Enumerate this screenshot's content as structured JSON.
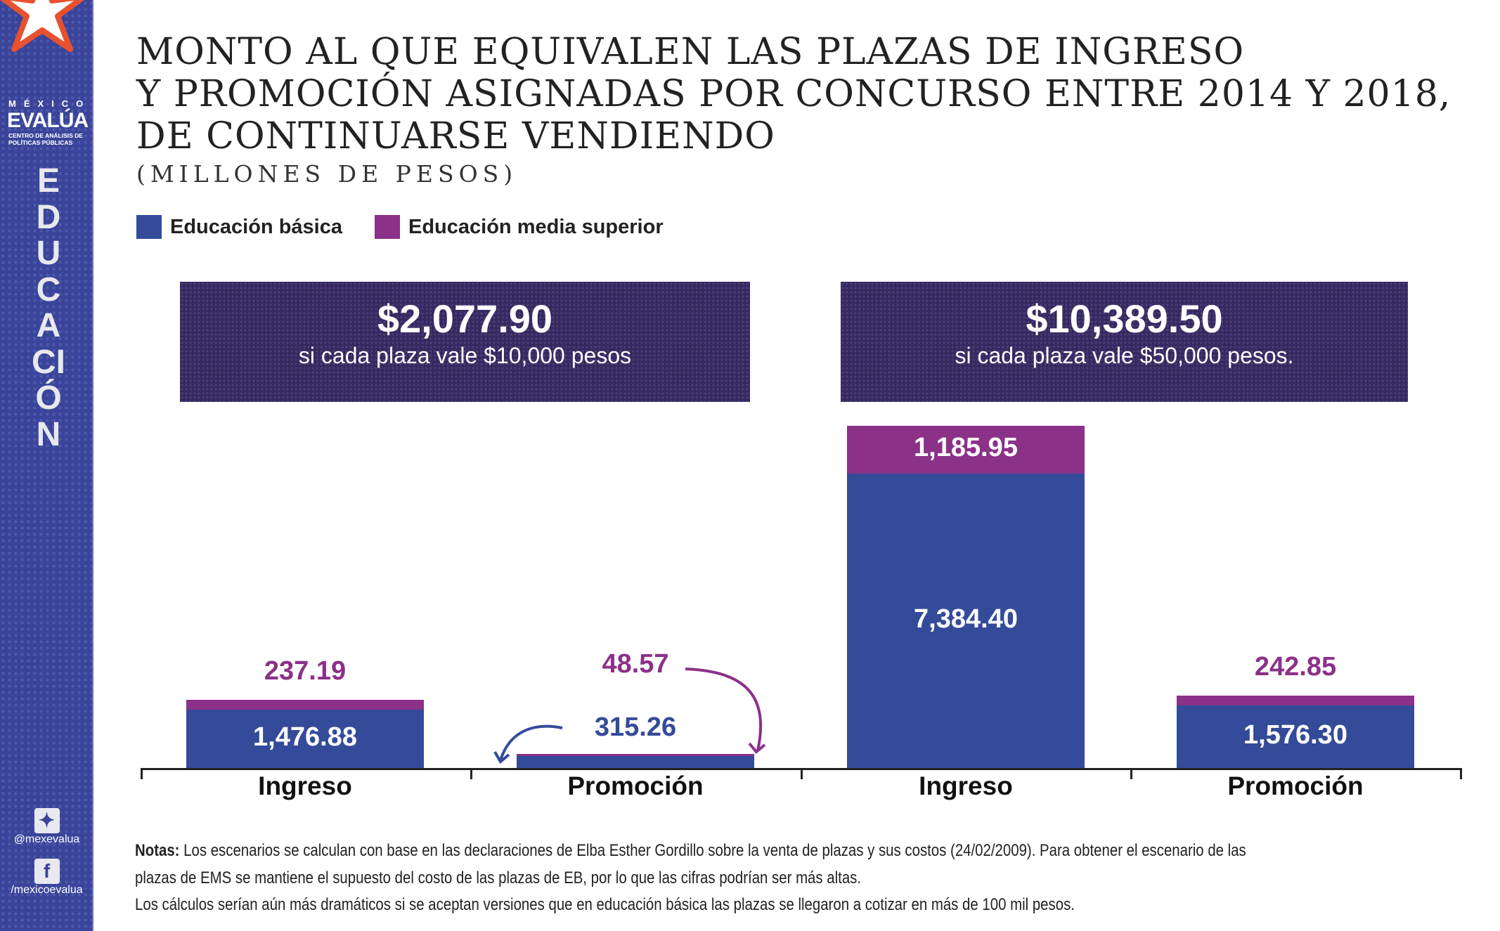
{
  "brand": {
    "line1": "MÉXICO",
    "line2": "EVALÚA",
    "line3": "CENTRO DE ANÁLISIS DE POLÍTICAS PÚBLICAS"
  },
  "section": "EDUCACIÓN",
  "social": {
    "twitter": "@mexevalua",
    "facebook": "/mexicoevalua"
  },
  "colors": {
    "basica": "#344b9a",
    "media": "#8b3188",
    "box": "#35295f"
  },
  "chart_data": {
    "type": "bar",
    "stacked": true,
    "title": "MONTO AL QUE EQUIVALEN LAS PLAZAS DE INGRESO Y PROMOCIÓN ASIGNADAS POR CONCURSO ENTRE 2014 Y 2018, DE CONTINUARSE VENDIENDO",
    "title_lines": [
      "MONTO AL QUE EQUIVALEN LAS PLAZAS DE INGRESO",
      "Y PROMOCIÓN ASIGNADAS POR CONCURSO ENTRE 2014 Y 2018,",
      "DE CONTINUARSE VENDIENDO"
    ],
    "subtitle": "(MILLONES DE PESOS)",
    "legend": [
      "Educación básica",
      "Educación media superior"
    ],
    "categories": [
      "Ingreso",
      "Promoción",
      "Ingreso",
      "Promoción"
    ],
    "series": [
      {
        "name": "Educación básica",
        "values": [
          1476.88,
          315.26,
          7384.4,
          1576.3
        ],
        "labels": [
          "1,476.88",
          "315.26",
          "7,384.40",
          "1,576.30"
        ]
      },
      {
        "name": "Educación media superior",
        "values": [
          237.19,
          48.57,
          1185.95,
          242.85
        ],
        "labels": [
          "237.19",
          "48.57",
          "1,185.95",
          "242.85"
        ]
      }
    ],
    "scenarios": [
      {
        "total": "$2,077.90",
        "caption": "si cada plaza vale $10,000 pesos"
      },
      {
        "total": "$10,389.50",
        "caption": "si cada plaza vale $50,000 pesos."
      }
    ],
    "ylim": [
      0,
      8570.35
    ]
  },
  "notes": {
    "label": "Notas:",
    "line1": " Los escenarios se calculan con base en las declaraciones de Elba Esther Gordillo sobre la venta de plazas y sus costos (24/02/2009). Para obtener el escenario de las",
    "line2": "plazas de EMS se mantiene el supuesto del costo de las plazas de EB, por lo que las cifras podrían ser más altas.",
    "line3": " Los cálculos serían aún más dramáticos si se aceptan versiones que en educación básica las plazas se llegaron a cotizar en más de 100 mil pesos."
  }
}
